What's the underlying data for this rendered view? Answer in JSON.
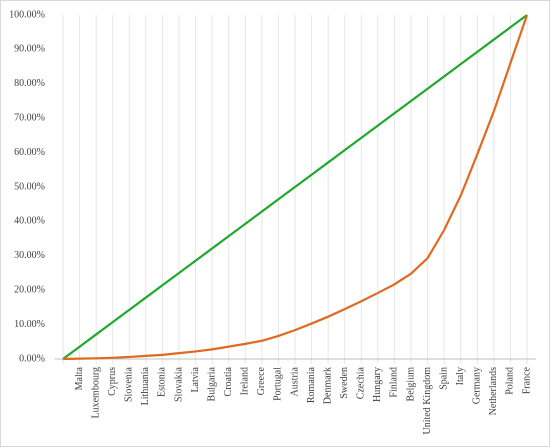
{
  "chart_data": {
    "type": "line",
    "categories": [
      null,
      "Malta",
      "Luxembourg",
      "Cyprus",
      "Slovenia",
      "Lithuania",
      "Estonia",
      "Slovakia",
      "Latvia",
      "Bulgaria",
      "Croatia",
      "Ireland",
      "Greece",
      "Portugal",
      "Austria",
      "Romania",
      "Denmark",
      "Sweden",
      "Czechia",
      "Hungary",
      "Finland",
      "Belgium",
      "United Kingdom",
      "Spain",
      "Italy",
      "Germany",
      "Netherlands",
      "Poland",
      "France"
    ],
    "series": [
      {
        "color": "#1faa2d",
        "values": [
          0,
          3.57,
          7.14,
          10.71,
          14.29,
          17.86,
          21.43,
          25,
          28.57,
          32.14,
          35.71,
          39.29,
          42.86,
          46.43,
          50,
          53.57,
          57.14,
          60.71,
          64.29,
          67.86,
          71.43,
          75,
          78.57,
          82.14,
          85.71,
          89.29,
          92.86,
          96.43,
          100
        ]
      },
      {
        "color": "#e06a20",
        "values": [
          0,
          0.1,
          0.2,
          0.35,
          0.6,
          0.9,
          1.2,
          1.7,
          2.2,
          2.8,
          3.6,
          4.4,
          5.3,
          6.7,
          8.4,
          10.3,
          12.3,
          14.5,
          16.8,
          19.2,
          21.7,
          24.8,
          29.3,
          37.5,
          47.5,
          59.5,
          72,
          86,
          100
        ]
      }
    ],
    "ylim": [
      0,
      100
    ],
    "yticks": [
      {
        "value": 0,
        "label": "0.00%"
      },
      {
        "value": 10,
        "label": "10.00%"
      },
      {
        "value": 20,
        "label": "20.00%"
      },
      {
        "value": 30,
        "label": "30.00%"
      },
      {
        "value": 40,
        "label": "40.00%"
      },
      {
        "value": 50,
        "label": "50.00%"
      },
      {
        "value": 60,
        "label": "60.00%"
      },
      {
        "value": 70,
        "label": "70.00%"
      },
      {
        "value": 80,
        "label": "80.00%"
      },
      {
        "value": 90,
        "label": "90.00%"
      },
      {
        "value": 100,
        "label": "100.00%"
      }
    ],
    "grid": true
  }
}
